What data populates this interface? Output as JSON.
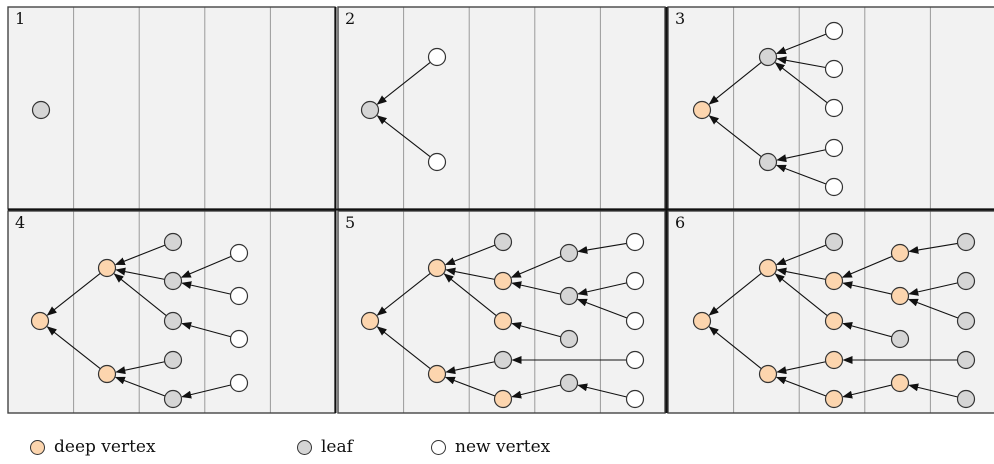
{
  "panels": [
    {
      "number": "1"
    },
    {
      "number": "2"
    },
    {
      "number": "3"
    },
    {
      "number": "4"
    },
    {
      "number": "5"
    },
    {
      "number": "6"
    }
  ],
  "legend": {
    "deep": "deep vertex",
    "leaf": "leaf",
    "new": "new vertex"
  },
  "colors": {
    "deep": "#fcd5ae",
    "leaf": "#d5d5d5",
    "new": "#ffffff",
    "panel_bg": "#f2f2f2",
    "stroke": "#333333"
  }
}
